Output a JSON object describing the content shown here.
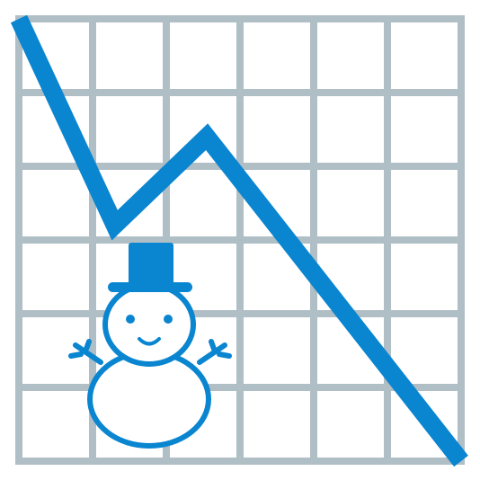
{
  "icon": "declining-chart-with-snowman-icon",
  "colors": {
    "background": "#ffffff",
    "grid": "#b0bec5",
    "line": "#0a85d0",
    "snowman": "#0a85d0",
    "snowman_fill": "#ffffff"
  },
  "chart_data": {
    "type": "line",
    "title": "",
    "xlabel": "",
    "ylabel": "",
    "grid": true,
    "x": [
      0,
      1.3,
      2.55,
      6.0
    ],
    "y": [
      6.0,
      3.2,
      4.4,
      0.0
    ],
    "xlim": [
      0,
      6
    ],
    "ylim": [
      0,
      6
    ]
  }
}
